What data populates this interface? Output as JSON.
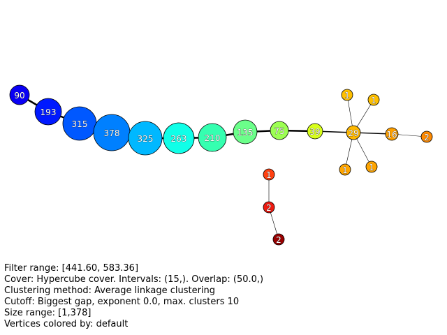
{
  "nodes": [
    {
      "id": "n90",
      "label": "90",
      "color": "#0a00f5"
    },
    {
      "id": "n193",
      "label": "193",
      "color": "#0019ff"
    },
    {
      "id": "n315",
      "label": "315",
      "color": "#0058ff"
    },
    {
      "id": "n378",
      "label": "378",
      "color": "#0080ff"
    },
    {
      "id": "n325",
      "label": "325",
      "color": "#00b8ff"
    },
    {
      "id": "n263",
      "label": "263",
      "color": "#10ffe8"
    },
    {
      "id": "n210",
      "label": "210",
      "color": "#35ffb0"
    },
    {
      "id": "n135",
      "label": "135",
      "color": "#6bff8a"
    },
    {
      "id": "n75",
      "label": "75",
      "color": "#9cff52"
    },
    {
      "id": "n39",
      "label": "39",
      "color": "#d8ff1a"
    },
    {
      "id": "n29",
      "label": "29",
      "color": "#ffb800"
    },
    {
      "id": "n16",
      "label": "16",
      "color": "#ffa000"
    },
    {
      "id": "n2a",
      "label": "2",
      "color": "#ff8a00"
    },
    {
      "id": "n1a",
      "label": "1",
      "color": "#ffc000"
    },
    {
      "id": "n1b",
      "label": "1",
      "color": "#ffc000"
    },
    {
      "id": "n1c",
      "label": "1",
      "color": "#ffa500"
    },
    {
      "id": "n1d",
      "label": "1",
      "color": "#ffa500"
    },
    {
      "id": "n1e",
      "label": "1",
      "color": "#ff4010"
    },
    {
      "id": "n2b",
      "label": "2",
      "color": "#ee1a10"
    },
    {
      "id": "n2c",
      "label": "2",
      "color": "#990000"
    }
  ],
  "edges": [
    [
      "n90",
      "n193"
    ],
    [
      "n193",
      "n315"
    ],
    [
      "n315",
      "n378"
    ],
    [
      "n378",
      "n325"
    ],
    [
      "n325",
      "n263"
    ],
    [
      "n263",
      "n210"
    ],
    [
      "n210",
      "n135"
    ],
    [
      "n135",
      "n75"
    ],
    [
      "n75",
      "n39"
    ],
    [
      "n39",
      "n29"
    ],
    [
      "n29",
      "n16"
    ],
    [
      "n16",
      "n2a"
    ],
    [
      "n29",
      "n1a"
    ],
    [
      "n29",
      "n1b"
    ],
    [
      "n29",
      "n1c"
    ],
    [
      "n29",
      "n1d"
    ],
    [
      "n1e",
      "n2b"
    ],
    [
      "n2b",
      "n2c"
    ]
  ],
  "info": {
    "filter_range": "Filter range: [441.60, 583.36]",
    "cover": "Cover: Hypercube cover. Intervals: (15,). Overlap: (50.0,)",
    "clustering": "Clustering method: Average linkage clustering",
    "cutoff": "Cutoff: Biggest gap, exponent 0.0, max. clusters 10",
    "size_range": "Size range: [1,378]",
    "colored_by": "Vertices colored by: default"
  }
}
